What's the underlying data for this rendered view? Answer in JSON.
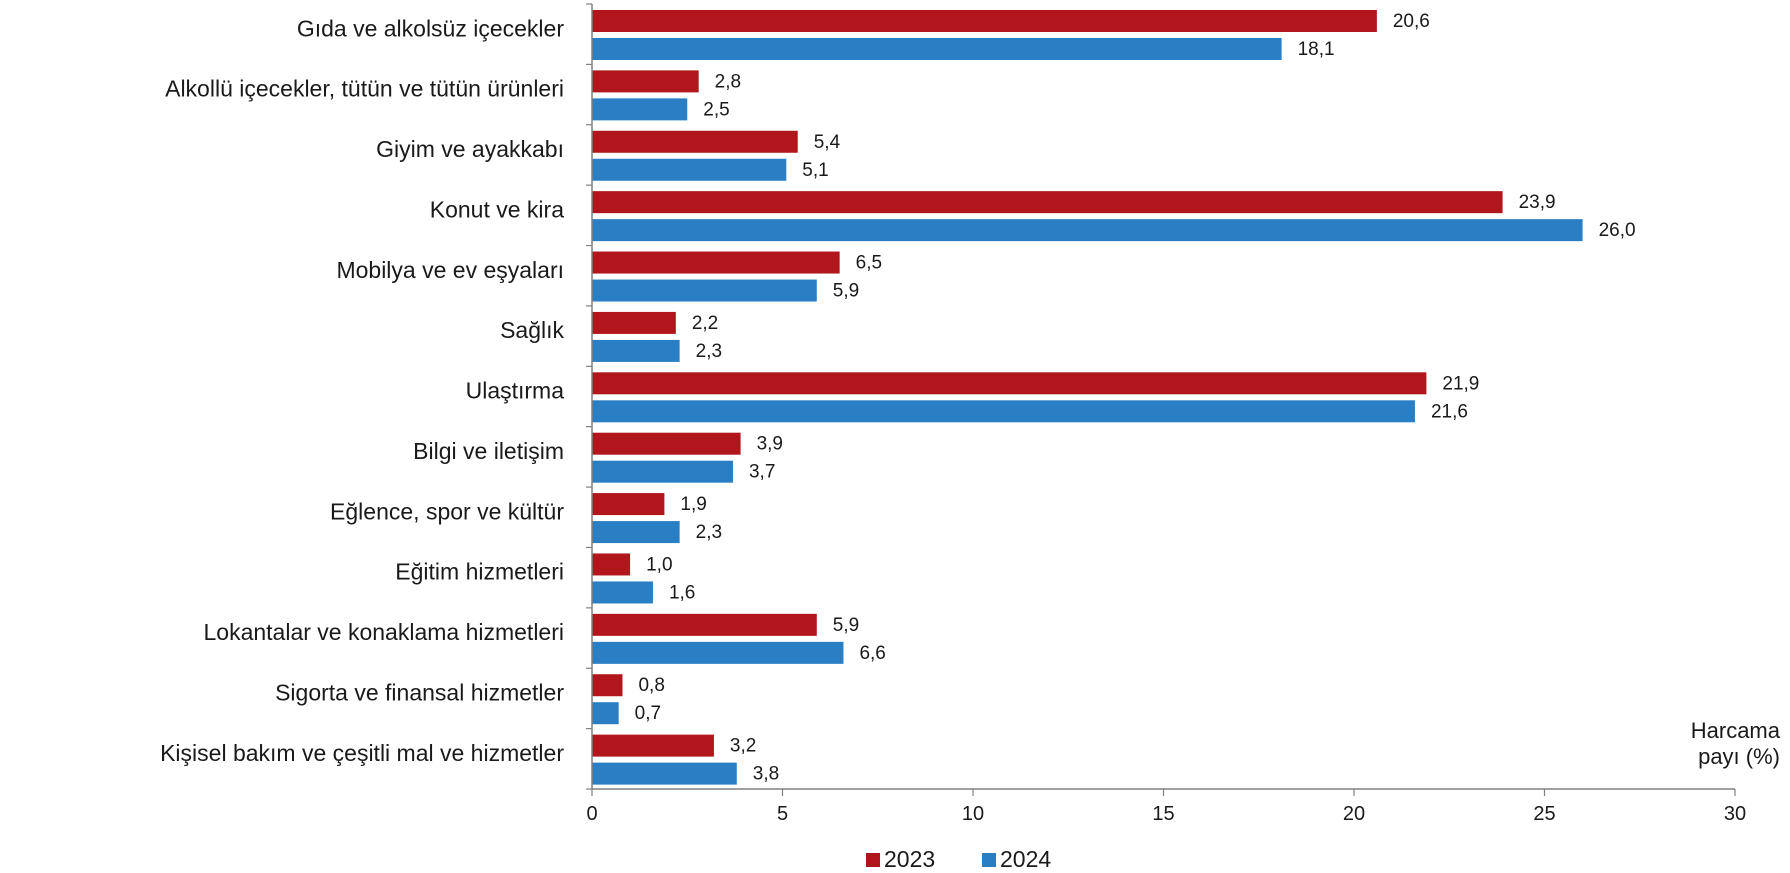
{
  "chart_data": {
    "type": "bar",
    "orientation": "horizontal",
    "categories": [
      "Gıda ve alkolsüz içecekler",
      "Alkollü içecekler, tütün ve tütün ürünleri",
      "Giyim ve ayakkabı",
      "Konut ve kira",
      "Mobilya ve ev eşyaları",
      "Sağlık",
      "Ulaştırma",
      "Bilgi ve iletişim",
      "Eğlence, spor ve kültür",
      "Eğitim hizmetleri",
      "Lokantalar ve konaklama hizmetleri",
      "Sigorta ve finansal hizmetler",
      "Kişisel bakım ve çeşitli mal ve hizmetler"
    ],
    "series": [
      {
        "name": "2023",
        "color": "#b0161b",
        "values": [
          20.6,
          2.8,
          5.4,
          23.9,
          6.5,
          2.2,
          21.9,
          3.9,
          1.9,
          1.0,
          5.9,
          0.8,
          3.2
        ],
        "labels": [
          "20,6",
          "2,8",
          "5,4",
          "23,9",
          "6,5",
          "2,2",
          "21,9",
          "3,9",
          "1,9",
          "1,0",
          "5,9",
          "0,8",
          "3,2"
        ]
      },
      {
        "name": "2024",
        "color": "#2a7fc4",
        "values": [
          18.1,
          2.5,
          5.1,
          26.0,
          5.9,
          2.3,
          21.6,
          3.7,
          2.3,
          1.6,
          6.6,
          0.7,
          3.8
        ],
        "labels": [
          "18,1",
          "2,5",
          "5,1",
          "26,0",
          "5,9",
          "2,3",
          "21,6",
          "3,7",
          "2,3",
          "1,6",
          "6,6",
          "0,7",
          "3,8"
        ]
      }
    ],
    "xlim": [
      0,
      30
    ],
    "xticks": [
      "0",
      "5",
      "10",
      "15",
      "20",
      "25",
      "30"
    ],
    "xlabel_line1": "Harcama",
    "xlabel_line2": "payı  (%)",
    "legend_position": "bottom",
    "grid": false
  }
}
